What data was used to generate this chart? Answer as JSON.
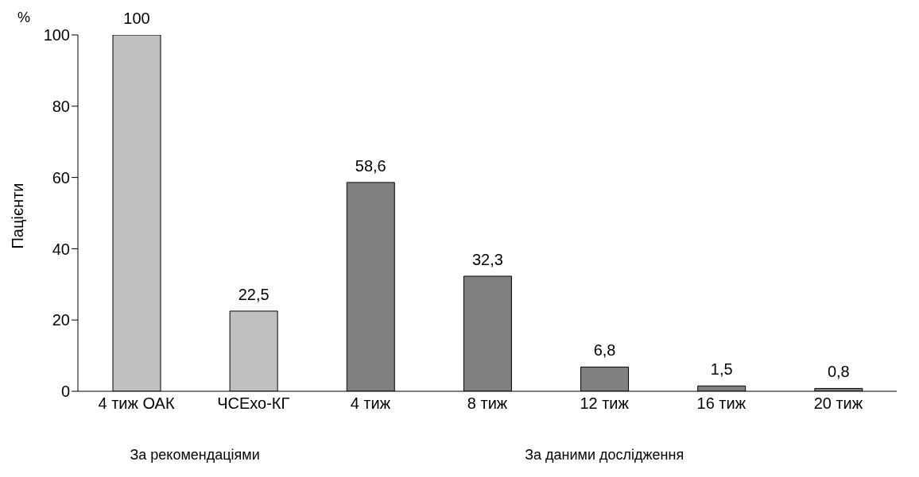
{
  "chart_data": {
    "type": "bar",
    "ylabel": "Пацієнти",
    "categories": [
      "4 тиж ОАК",
      "ЧСЕхо-КГ",
      "4 тиж",
      "8 тиж",
      "12 тиж",
      "16 тиж",
      "20 тиж"
    ],
    "values": [
      100,
      22.5,
      58.6,
      32.3,
      6.8,
      1.5,
      0.8
    ],
    "value_labels": [
      "100",
      "22,5",
      "58,6",
      "32,3",
      "6,8",
      "1,5",
      "0,8"
    ],
    "colors": [
      "#c0c0c0",
      "#c0c0c0",
      "#808080",
      "#808080",
      "#808080",
      "#808080",
      "#808080"
    ],
    "ylim": [
      0,
      100
    ],
    "yticks": [
      0,
      20,
      40,
      60,
      80,
      100
    ],
    "grid": false,
    "legend": false,
    "annotations": [
      "%",
      "За рекомендаціями",
      "За даними дослідження"
    ]
  }
}
